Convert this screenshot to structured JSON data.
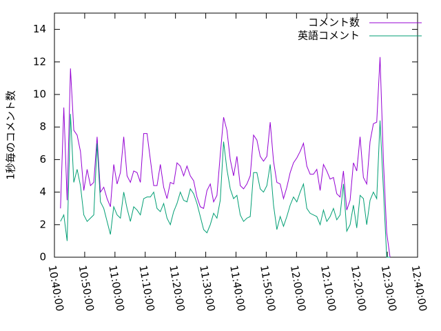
{
  "chart_data": {
    "type": "line",
    "ylabel": "1秒毎のコメント数",
    "x": [
      "10:42:00",
      "10:43:06",
      "10:44:12",
      "10:45:18",
      "10:46:24",
      "10:47:30",
      "10:48:36",
      "10:49:42",
      "10:50:48",
      "10:51:54",
      "10:53:00",
      "10:54:06",
      "10:55:12",
      "10:56:18",
      "10:57:24",
      "10:58:30",
      "10:59:36",
      "11:00:42",
      "11:01:48",
      "11:02:54",
      "11:04:00",
      "11:05:06",
      "11:06:12",
      "11:07:18",
      "11:08:24",
      "11:09:30",
      "11:10:36",
      "11:11:42",
      "11:12:48",
      "11:13:54",
      "11:15:00",
      "11:16:06",
      "11:17:12",
      "11:18:18",
      "11:19:24",
      "11:20:30",
      "11:21:36",
      "11:22:42",
      "11:23:48",
      "11:24:54",
      "11:26:00",
      "11:27:06",
      "11:28:12",
      "11:29:18",
      "11:30:24",
      "11:31:30",
      "11:32:36",
      "11:33:42",
      "11:34:48",
      "11:35:54",
      "11:37:00",
      "11:38:06",
      "11:39:12",
      "11:40:18",
      "11:41:24",
      "11:42:30",
      "11:43:36",
      "11:44:42",
      "11:45:48",
      "11:46:54",
      "11:48:00",
      "11:49:06",
      "11:50:12",
      "11:51:18",
      "11:52:24",
      "11:53:30",
      "11:54:36",
      "11:55:42",
      "11:56:48",
      "11:57:54",
      "11:59:00",
      "12:00:06",
      "12:01:12",
      "12:02:18",
      "12:03:24",
      "12:04:30",
      "12:05:36",
      "12:06:42",
      "12:07:48",
      "12:08:54",
      "12:10:00",
      "12:11:06",
      "12:12:12",
      "12:13:18",
      "12:14:24",
      "12:15:30",
      "12:16:36",
      "12:17:42",
      "12:18:48",
      "12:19:54",
      "12:21:00",
      "12:22:06",
      "12:23:12",
      "12:24:18",
      "12:25:24",
      "12:26:30",
      "12:27:36",
      "12:28:42",
      "12:29:48",
      "12:30:54"
    ],
    "series": [
      {
        "name": "コメント数",
        "color": "#9400d3",
        "values": [
          3.0,
          9.2,
          3.5,
          11.6,
          7.8,
          7.5,
          6.5,
          4.1,
          5.4,
          4.4,
          4.6,
          7.4,
          4.0,
          4.3,
          3.6,
          3.1,
          5.7,
          4.5,
          5.2,
          7.4,
          5.0,
          4.6,
          5.3,
          5.2,
          4.6,
          7.6,
          7.6,
          6.0,
          4.4,
          4.4,
          5.7,
          4.3,
          3.6,
          4.6,
          4.5,
          5.8,
          5.6,
          5.0,
          5.6,
          5.0,
          4.7,
          3.7,
          3.1,
          3.0,
          4.1,
          4.5,
          3.4,
          3.8,
          6.3,
          8.6,
          7.8,
          6.0,
          5.0,
          6.2,
          4.4,
          4.2,
          4.5,
          5.0,
          7.5,
          7.2,
          6.2,
          5.9,
          6.2,
          8.3,
          5.9,
          4.6,
          4.5,
          3.6,
          4.3,
          5.2,
          5.8,
          6.1,
          6.5,
          7.0,
          5.6,
          5.1,
          5.1,
          5.4,
          4.1,
          5.7,
          5.3,
          4.8,
          4.9,
          3.9,
          3.7,
          5.3,
          2.9,
          3.5,
          5.8,
          5.3,
          7.4,
          4.9,
          4.5,
          7.1,
          8.2,
          8.3,
          12.3,
          6.0,
          1.5,
          0
        ]
      },
      {
        "name": "英語コメント",
        "color": "#009e73",
        "values": [
          2.2,
          2.6,
          1.0,
          8.8,
          4.6,
          5.4,
          4.4,
          2.6,
          2.2,
          2.4,
          2.6,
          7.0,
          3.4,
          3.0,
          2.2,
          1.4,
          3.1,
          2.6,
          2.4,
          4.0,
          3.0,
          2.2,
          3.1,
          2.9,
          2.6,
          3.6,
          3.7,
          3.7,
          4.0,
          3.0,
          2.8,
          3.3,
          2.4,
          2.0,
          2.8,
          3.3,
          4.0,
          3.5,
          3.4,
          4.2,
          3.9,
          3.3,
          2.5,
          1.7,
          1.5,
          2.0,
          2.7,
          2.4,
          3.5,
          7.1,
          5.4,
          4.2,
          3.6,
          3.8,
          2.6,
          2.2,
          2.4,
          2.5,
          5.2,
          5.2,
          4.2,
          4.0,
          4.4,
          5.7,
          3.2,
          1.7,
          2.5,
          1.9,
          2.5,
          3.2,
          3.7,
          3.4,
          4.0,
          4.5,
          3.0,
          2.7,
          2.6,
          2.5,
          2.0,
          2.9,
          2.2,
          2.5,
          3.0,
          2.3,
          2.6,
          4.5,
          1.6,
          2.0,
          3.2,
          1.8,
          3.8,
          3.6,
          2.0,
          3.5,
          4.0,
          3.6,
          8.4,
          4.2,
          0,
          0
        ]
      }
    ],
    "xlim": [
      "10:40:00",
      "12:40:00"
    ],
    "xticks": [
      "10:40:00",
      "10:50:00",
      "11:00:00",
      "11:10:00",
      "11:20:00",
      "11:30:00",
      "11:40:00",
      "11:50:00",
      "12:00:00",
      "12:10:00",
      "12:20:00",
      "12:30:00",
      "12:40:00"
    ],
    "ylim": [
      0,
      15
    ],
    "yticks": [
      0,
      2,
      4,
      6,
      8,
      10,
      12,
      14
    ],
    "grid": false,
    "legend": "top-right"
  }
}
